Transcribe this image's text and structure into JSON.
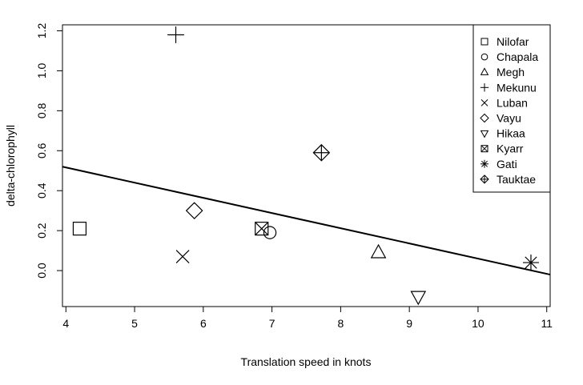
{
  "chart_data": {
    "type": "scatter",
    "xlabel": "Translation speed in knots",
    "ylabel": "delta-chlorophyll",
    "xlim": [
      3.95,
      11.05
    ],
    "ylim": [
      -0.18,
      1.23
    ],
    "xticks": [
      4,
      5,
      6,
      7,
      8,
      9,
      10,
      11
    ],
    "yticks": [
      0.0,
      0.2,
      0.4,
      0.6,
      0.8,
      1.0,
      1.2
    ],
    "ytick_labels": [
      "0.0",
      "0.2",
      "0.4",
      "0.6",
      "0.8",
      "1.0",
      "1.2"
    ],
    "grid": false,
    "legend_position": "top-right",
    "series": [
      {
        "name": "Nilofar",
        "symbol": "square",
        "x": 4.2,
        "y": 0.21
      },
      {
        "name": "Chapala",
        "symbol": "circle",
        "x": 6.97,
        "y": 0.19
      },
      {
        "name": "Megh",
        "symbol": "triangle-up",
        "x": 8.55,
        "y": 0.09
      },
      {
        "name": "Mekunu",
        "symbol": "plus",
        "x": 5.6,
        "y": 1.18
      },
      {
        "name": "Luban",
        "symbol": "cross",
        "x": 5.7,
        "y": 0.07
      },
      {
        "name": "Vayu",
        "symbol": "diamond",
        "x": 5.87,
        "y": 0.3
      },
      {
        "name": "Hikaa",
        "symbol": "triangle-down",
        "x": 9.13,
        "y": -0.13
      },
      {
        "name": "Kyarr",
        "symbol": "boxed-x",
        "x": 6.85,
        "y": 0.21
      },
      {
        "name": "Gati",
        "symbol": "asterisk",
        "x": 10.77,
        "y": 0.04
      },
      {
        "name": "Tauktae",
        "symbol": "diamond-plus",
        "x": 7.72,
        "y": 0.59
      }
    ],
    "regression_line": {
      "x": [
        3.95,
        11.05
      ],
      "y": [
        0.52,
        -0.02
      ]
    }
  }
}
